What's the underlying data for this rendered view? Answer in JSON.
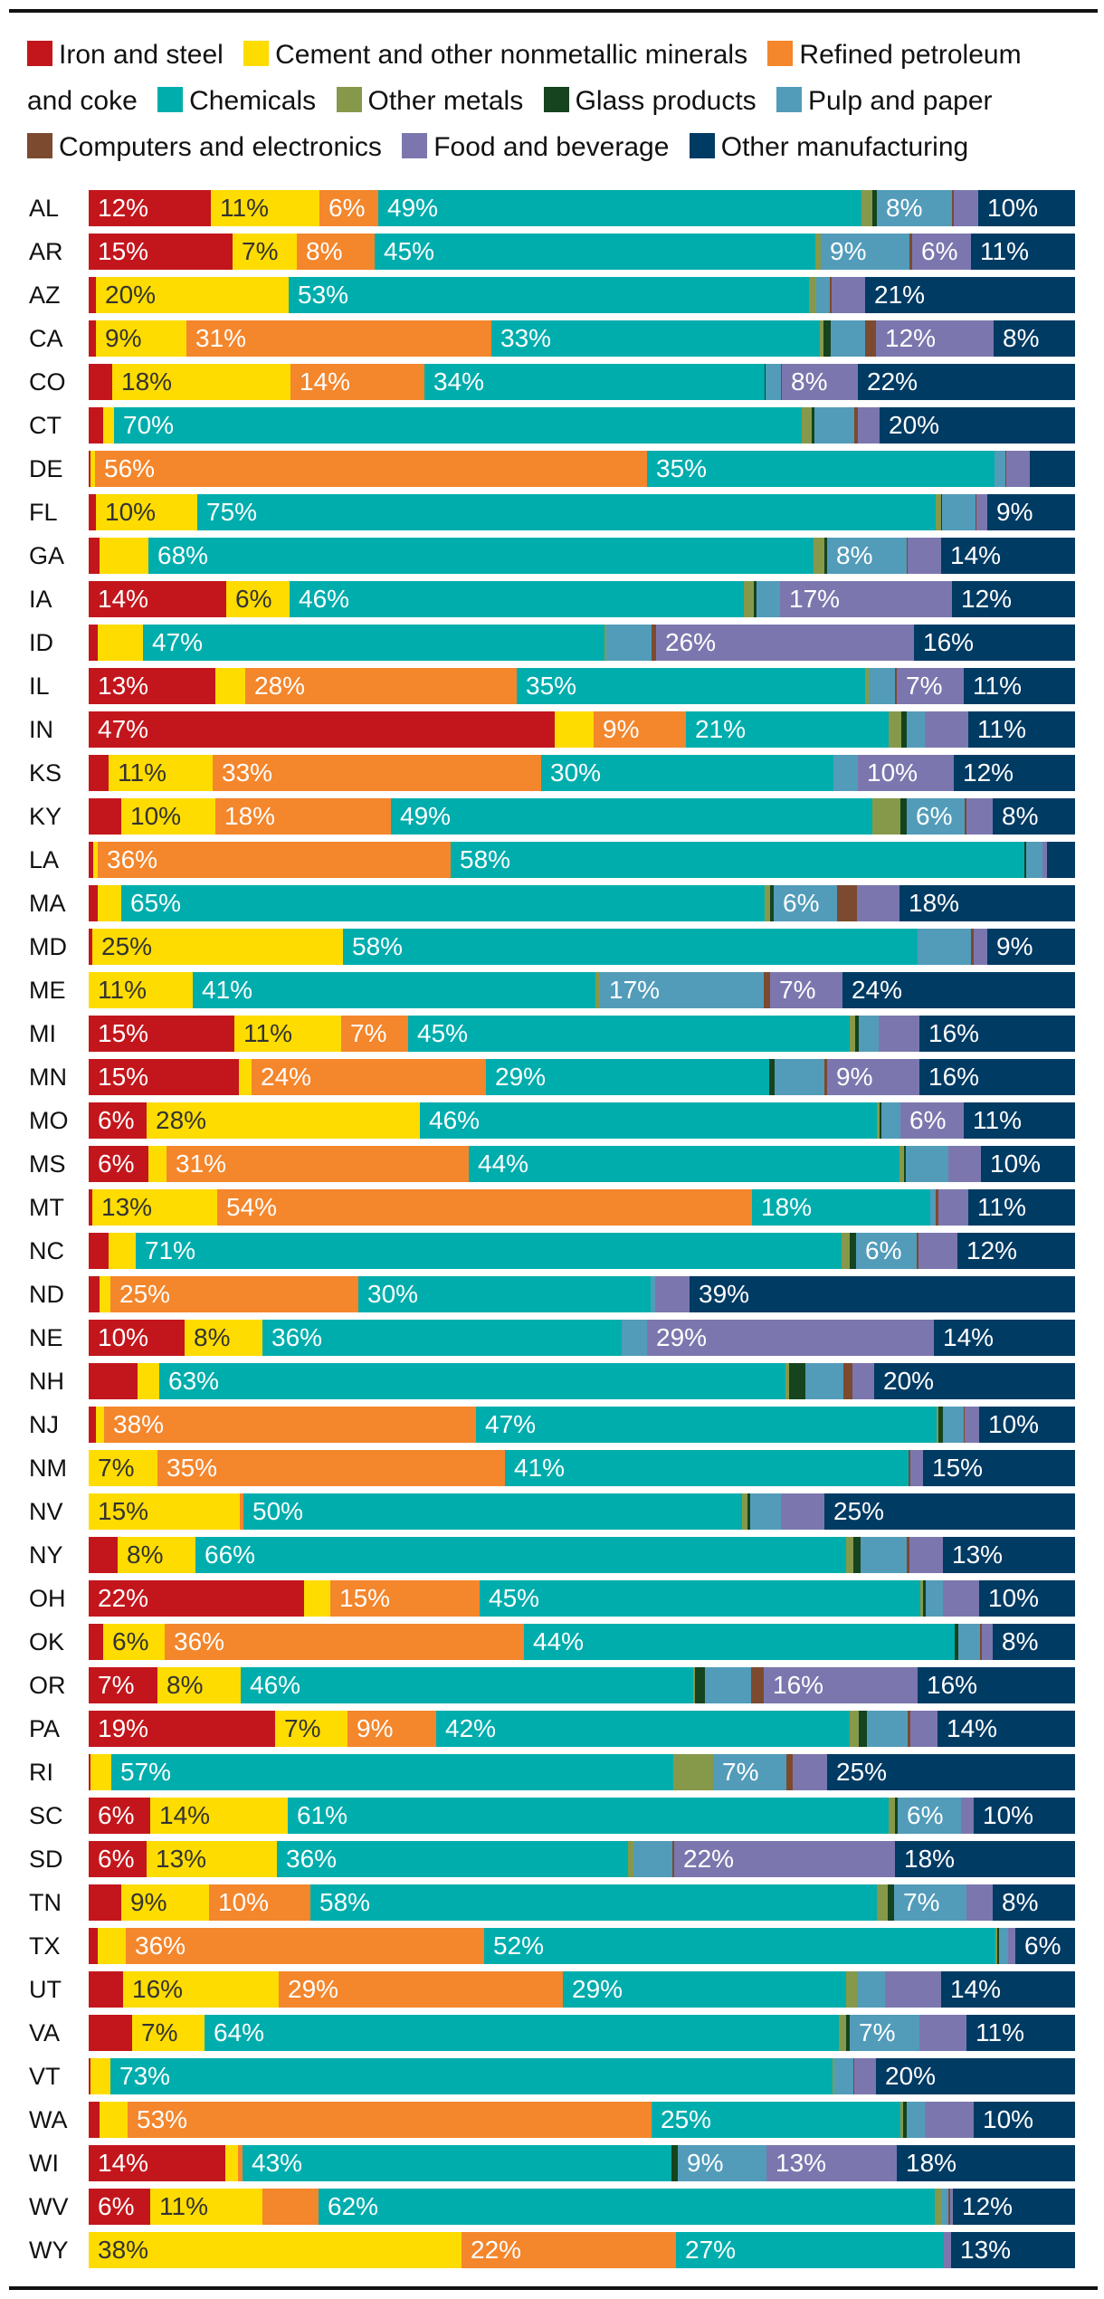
{
  "chart_data": {
    "type": "bar",
    "orientation": "horizontal",
    "stacked": true,
    "title": "",
    "xlabel": "",
    "ylabel": "",
    "unit": "%",
    "xlim": [
      0,
      100
    ],
    "grid": false,
    "legend_position": "top",
    "categories": [
      "AL",
      "AR",
      "AZ",
      "CA",
      "CO",
      "CT",
      "DE",
      "FL",
      "GA",
      "IA",
      "ID",
      "IL",
      "IN",
      "KS",
      "KY",
      "LA",
      "MA",
      "MD",
      "ME",
      "MI",
      "MN",
      "MO",
      "MS",
      "MT",
      "NC",
      "ND",
      "NE",
      "NH",
      "NJ",
      "NM",
      "NV",
      "NY",
      "OH",
      "OK",
      "OR",
      "PA",
      "RI",
      "SC",
      "SD",
      "TN",
      "TX",
      "UT",
      "VA",
      "VT",
      "WA",
      "WI",
      "WV",
      "WY"
    ],
    "series": [
      {
        "name": "Iron and steel",
        "color": "#C3161C",
        "values": [
          12.4,
          14.6,
          0.7,
          0.7,
          2.4,
          1.5,
          0.2,
          0.7,
          1.1,
          13.9,
          0.9,
          12.8,
          47.3,
          2.0,
          3.3,
          0.5,
          0.9,
          0.4,
          0,
          14.8,
          15.2,
          5.9,
          6.1,
          0.4,
          2.0,
          1.1,
          9.7,
          4.9,
          0.7,
          0,
          0,
          2.9,
          21.8,
          1.5,
          7.0,
          18.9,
          0.2,
          6.2,
          5.9,
          3.3,
          0.9,
          3.5,
          4.4,
          0.2,
          1.1,
          13.8,
          6.2,
          0
        ],
        "labels": [
          "12%",
          "15%",
          "",
          "",
          "",
          "",
          "",
          "",
          "",
          "14%",
          "",
          "13%",
          "47%",
          "",
          "",
          "",
          "",
          "",
          "",
          "15%",
          "15%",
          "6%",
          "6%",
          "",
          "",
          "",
          "10%",
          "",
          "",
          "",
          "",
          "",
          "22%",
          "",
          "7%",
          "19%",
          "",
          "6%",
          "6%",
          "",
          "",
          "",
          "",
          "",
          "",
          "14%",
          "6%",
          ""
        ]
      },
      {
        "name": "Cement and other nonmetallic minerals",
        "color": "#FEDC00",
        "values": [
          11,
          6.6,
          19.6,
          9.2,
          18,
          1.1,
          0.4,
          10.3,
          5.0,
          6.4,
          4.6,
          3.1,
          3.9,
          10.6,
          9.6,
          0.4,
          2.4,
          25.3,
          10.6,
          10.8,
          1.3,
          27.7,
          1.8,
          12.6,
          2.8,
          1.1,
          7.9,
          2.2,
          0.9,
          7.0,
          15.3,
          7.9,
          2.7,
          6.2,
          8.4,
          7.3,
          2.1,
          14.0,
          13.2,
          8.9,
          2.9,
          15.8,
          7.3,
          2.0,
          2.8,
          1.3,
          11.4,
          37.8
        ],
        "labels": [
          "11%",
          "7%",
          "20%",
          "9%",
          "18%",
          "",
          "",
          "10%",
          "",
          "6%",
          "",
          "",
          "",
          "11%",
          "10%",
          "",
          "",
          "25%",
          "11%",
          "11%",
          "",
          "28%",
          "",
          "13%",
          "",
          "",
          "8%",
          "",
          "",
          "7%",
          "15%",
          "8%",
          "",
          "6%",
          "8%",
          "7%",
          "",
          "14%",
          "13%",
          "9%",
          "",
          "16%",
          "7%",
          "",
          "",
          "",
          "11%",
          "38%"
        ]
      },
      {
        "name": "Refined petroleum and coke",
        "color": "#F4862C",
        "values": [
          5.9,
          7.9,
          0,
          31,
          13.6,
          0,
          56,
          0,
          0,
          0,
          0,
          27.5,
          9.4,
          33.4,
          17.8,
          35.8,
          0,
          0,
          0,
          6.8,
          23.8,
          0,
          30.7,
          54.3,
          0,
          25.1,
          0,
          0,
          37.6,
          35.2,
          0.3,
          0,
          15.1,
          36.3,
          0,
          9.0,
          0,
          0,
          0,
          10.3,
          36.3,
          28.8,
          0,
          0,
          53.2,
          0.5,
          5.7,
          21.8
        ],
        "labels": [
          "6%",
          "8%",
          "",
          "31%",
          "14%",
          "",
          "56%",
          "",
          "",
          "",
          "",
          "28%",
          "9%",
          "33%",
          "18%",
          "36%",
          "",
          "",
          "",
          "7%",
          "24%",
          "",
          "31%",
          "54%",
          "",
          "25%",
          "",
          "",
          "38%",
          "35%",
          "",
          "",
          "15%",
          "36%",
          "",
          "9%",
          "",
          "",
          "",
          "10%",
          "36%",
          "29%",
          "",
          "",
          "53%",
          "",
          "",
          "22%"
        ]
      },
      {
        "name": "Chemicals",
        "color": "#00ADAD",
        "values": [
          49,
          44.8,
          52.7,
          33.3,
          34.4,
          69.7,
          35.2,
          74.9,
          67.5,
          45.9,
          46.7,
          35.3,
          20.6,
          29.7,
          48.8,
          58.2,
          65.2,
          58.2,
          40.9,
          44.8,
          28.7,
          46.3,
          43.8,
          18.1,
          71.3,
          29.7,
          36.3,
          63.3,
          46.7,
          40.9,
          50.4,
          66.0,
          44.7,
          43.6,
          45.9,
          41.8,
          57.0,
          60.9,
          35.6,
          57.6,
          51.8,
          28.8,
          64.4,
          73.2,
          25.2,
          43.4,
          62.3,
          27.2
        ],
        "labels": [
          "49%",
          "45%",
          "53%",
          "33%",
          "34%",
          "70%",
          "35%",
          "75%",
          "68%",
          "46%",
          "47%",
          "35%",
          "21%",
          "30%",
          "49%",
          "58%",
          "65%",
          "58%",
          "41%",
          "45%",
          "29%",
          "46%",
          "44%",
          "18%",
          "71%",
          "30%",
          "36%",
          "63%",
          "47%",
          "41%",
          "50%",
          "66%",
          "45%",
          "44%",
          "46%",
          "42%",
          "57%",
          "61%",
          "36%",
          "58%",
          "52%",
          "29%",
          "64%",
          "73%",
          "25%",
          "43%",
          "62%",
          "27%"
        ]
      },
      {
        "name": "Other metals",
        "color": "#86994B",
        "values": [
          1.1,
          0.5,
          0.8,
          0.4,
          0,
          1.0,
          0,
          0.5,
          1.1,
          1.0,
          0.2,
          0.4,
          1.3,
          0,
          2.9,
          0,
          0.5,
          0,
          0.4,
          0.5,
          0,
          0.3,
          0.4,
          0,
          0.8,
          0,
          0,
          0.4,
          0.2,
          0,
          0.6,
          0.7,
          0.3,
          0,
          0.2,
          0.9,
          4.0,
          0.6,
          0.6,
          1.1,
          0.2,
          1.1,
          0.7,
          0.2,
          0.3,
          0,
          0.7,
          0
        ],
        "labels": [
          "",
          "",
          "",
          "",
          "",
          "",
          "",
          "",
          "",
          "",
          "",
          "",
          "",
          "",
          "",
          "",
          "",
          "",
          "",
          "",
          "",
          "",
          "",
          "",
          "",
          "",
          "",
          "",
          "",
          "",
          "",
          "",
          "",
          "",
          "",
          "",
          "",
          "",
          "",
          "",
          "",
          "",
          "",
          "",
          "",
          "",
          "",
          ""
        ]
      },
      {
        "name": "Glass products",
        "color": "#15441E",
        "values": [
          0.4,
          0,
          0,
          0.7,
          0.1,
          0.3,
          0,
          0.1,
          0.2,
          0.2,
          0,
          0,
          0.5,
          0,
          0.6,
          0.1,
          0.4,
          0,
          0,
          0.4,
          0.5,
          0.2,
          0.2,
          0,
          0.7,
          0,
          0,
          1.6,
          0.4,
          0,
          0.3,
          0.8,
          0.3,
          0.4,
          1.0,
          0.8,
          0,
          0.3,
          0,
          0.6,
          0.2,
          0,
          0.4,
          0,
          0.3,
          0.6,
          0,
          0
        ],
        "labels": [
          "",
          "",
          "",
          "",
          "",
          "",
          "",
          "",
          "",
          "",
          "",
          "",
          "",
          "",
          "",
          "",
          "",
          "",
          "",
          "",
          "",
          "",
          "",
          "",
          "",
          "",
          "",
          "",
          "",
          "",
          "",
          "",
          "",
          "",
          "",
          "",
          "",
          "",
          "",
          "",
          "",
          "",
          "",
          "",
          "",
          "",
          "",
          ""
        ]
      },
      {
        "name": "Pulp and paper",
        "color": "#529CBA",
        "values": [
          7.6,
          9.1,
          1.3,
          3.5,
          1.5,
          4.0,
          1.1,
          3.4,
          8.1,
          2.4,
          4.6,
          2.6,
          1.9,
          2.4,
          5.9,
          1.7,
          6.4,
          5.4,
          16.7,
          2.0,
          5.1,
          1.9,
          4.3,
          0.6,
          6.1,
          0.4,
          2.6,
          3.9,
          2.1,
          0,
          3.1,
          4.6,
          1.7,
          2.2,
          4.7,
          4.2,
          7.4,
          6.4,
          3.9,
          7.4,
          0.9,
          2.8,
          7.0,
          1.9,
          1.9,
          9.0,
          0.7,
          0
        ],
        "labels": [
          "8%",
          "9%",
          "",
          "",
          "",
          "",
          "",
          "",
          "8%",
          "",
          "",
          "",
          "",
          "",
          "6%",
          "",
          "6%",
          "",
          "17%",
          "",
          "",
          "",
          "",
          "",
          "6%",
          "",
          "",
          "",
          "",
          "",
          "",
          "",
          "",
          "",
          "",
          "",
          "7%",
          "6%",
          "",
          "7%",
          "",
          "",
          "7%",
          "",
          "",
          "9%",
          "",
          ""
        ]
      },
      {
        "name": "Computers and electronics",
        "color": "#7C4A2E",
        "values": [
          0.2,
          0.2,
          0.2,
          1.1,
          0.1,
          0.4,
          0.1,
          0.1,
          0.1,
          0,
          0.5,
          0.2,
          0,
          0,
          0.2,
          0,
          2.0,
          0.2,
          0.6,
          0,
          0.3,
          0,
          0,
          0.2,
          0.2,
          0,
          0,
          0.9,
          0.1,
          0.2,
          0,
          0.3,
          0,
          0.2,
          1.2,
          0.2,
          0.7,
          0,
          0.2,
          0,
          0,
          0,
          0,
          0.1,
          0,
          0,
          0.2,
          0
        ],
        "labels": [
          "",
          "",
          "",
          "",
          "",
          "",
          "",
          "",
          "",
          "",
          "",
          "",
          "",
          "",
          "",
          "",
          "",
          "",
          "",
          "",
          "",
          "",
          "",
          "",
          "",
          "",
          "",
          "",
          "",
          "",
          "",
          "",
          "",
          "",
          "",
          "",
          "",
          "",
          "",
          "",
          "",
          "",
          "",
          "",
          "",
          "",
          "",
          ""
        ]
      },
      {
        "name": "Food and beverage",
        "color": "#7B77AE",
        "values": [
          2.5,
          6.0,
          3.4,
          11.9,
          7.7,
          2.2,
          2.4,
          1.1,
          3.4,
          17.4,
          26.1,
          6.8,
          4.4,
          9.8,
          2.6,
          0.5,
          4.3,
          1.4,
          7.4,
          4.1,
          9.3,
          6.4,
          3.3,
          3.1,
          3.9,
          3.5,
          29.0,
          2.2,
          1.5,
          1.3,
          4.4,
          3.4,
          3.7,
          1.1,
          15.6,
          2.8,
          3.5,
          1.3,
          22.4,
          2.6,
          0.7,
          5.7,
          4.8,
          2.2,
          4.9,
          13.2,
          0.2,
          0.7
        ],
        "labels": [
          "",
          "6%",
          "",
          "12%",
          "8%",
          "",
          "",
          "",
          "",
          "17%",
          "26%",
          "7%",
          "",
          "10%",
          "",
          "",
          "",
          "",
          "7%",
          "",
          "9%",
          "6%",
          "",
          "",
          "",
          "",
          "29%",
          "",
          "",
          "",
          "",
          "",
          "",
          "",
          "16%",
          "",
          "",
          "",
          "22%",
          "",
          "",
          "",
          "",
          "",
          "",
          "13%",
          "",
          ""
        ]
      },
      {
        "name": "Other manufacturing",
        "color": "#003B64",
        "values": [
          9.8,
          10.6,
          21.3,
          8.3,
          22,
          19.8,
          4.6,
          8.9,
          13.6,
          12.4,
          16.3,
          11.3,
          10.8,
          12.3,
          8.4,
          2.8,
          17.8,
          8.9,
          23.6,
          15.8,
          15.8,
          11.3,
          9.6,
          10.8,
          11.9,
          39.1,
          14.3,
          20.3,
          9.7,
          15.4,
          25.3,
          13.4,
          9.7,
          8.3,
          16.0,
          13.9,
          25.1,
          10.3,
          18.3,
          8.4,
          6.1,
          13.6,
          11.0,
          20.2,
          10.3,
          18.0,
          12.4,
          12.6
        ],
        "labels": [
          "10%",
          "11%",
          "21%",
          "8%",
          "22%",
          "20%",
          "",
          "9%",
          "14%",
          "12%",
          "16%",
          "11%",
          "11%",
          "12%",
          "8%",
          "",
          "18%",
          "9%",
          "24%",
          "16%",
          "16%",
          "11%",
          "10%",
          "11%",
          "12%",
          "39%",
          "14%",
          "20%",
          "10%",
          "15%",
          "25%",
          "13%",
          "10%",
          "8%",
          "16%",
          "14%",
          "25%",
          "10%",
          "18%",
          "8%",
          "6%",
          "14%",
          "11%",
          "20%",
          "10%",
          "18%",
          "12%",
          "13%"
        ]
      }
    ]
  }
}
